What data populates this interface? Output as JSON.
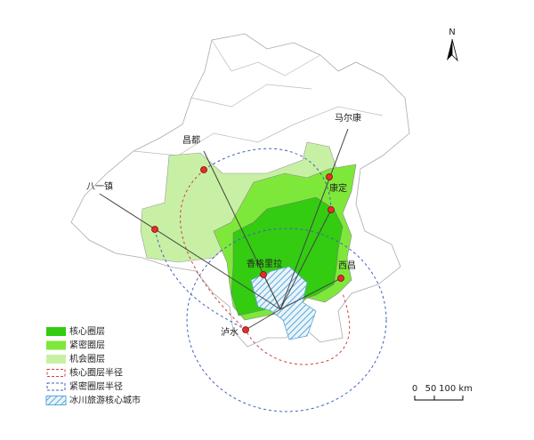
{
  "north_arrow": "N",
  "cities": [
    {
      "name": "八一镇"
    },
    {
      "name": "昌都"
    },
    {
      "name": "马尔康"
    },
    {
      "name": "康定"
    },
    {
      "name": "香格里拉"
    },
    {
      "name": "西昌"
    },
    {
      "name": "泸水"
    }
  ],
  "legend": {
    "items": [
      {
        "label": "核心圈层",
        "color": "#33cc11"
      },
      {
        "label": "紧密圈层",
        "color": "#7ee83a"
      },
      {
        "label": "机会圈层",
        "color": "#c8f0a4"
      },
      {
        "label": "核心圈层半径",
        "color": "#d04040"
      },
      {
        "label": "紧密圈层半径",
        "color": "#4060c0"
      },
      {
        "label": "冰川旅游核心城市",
        "color": "#5aa8d8"
      }
    ]
  },
  "scale_bar": {
    "labels": [
      "0",
      "50",
      "100 km"
    ]
  }
}
